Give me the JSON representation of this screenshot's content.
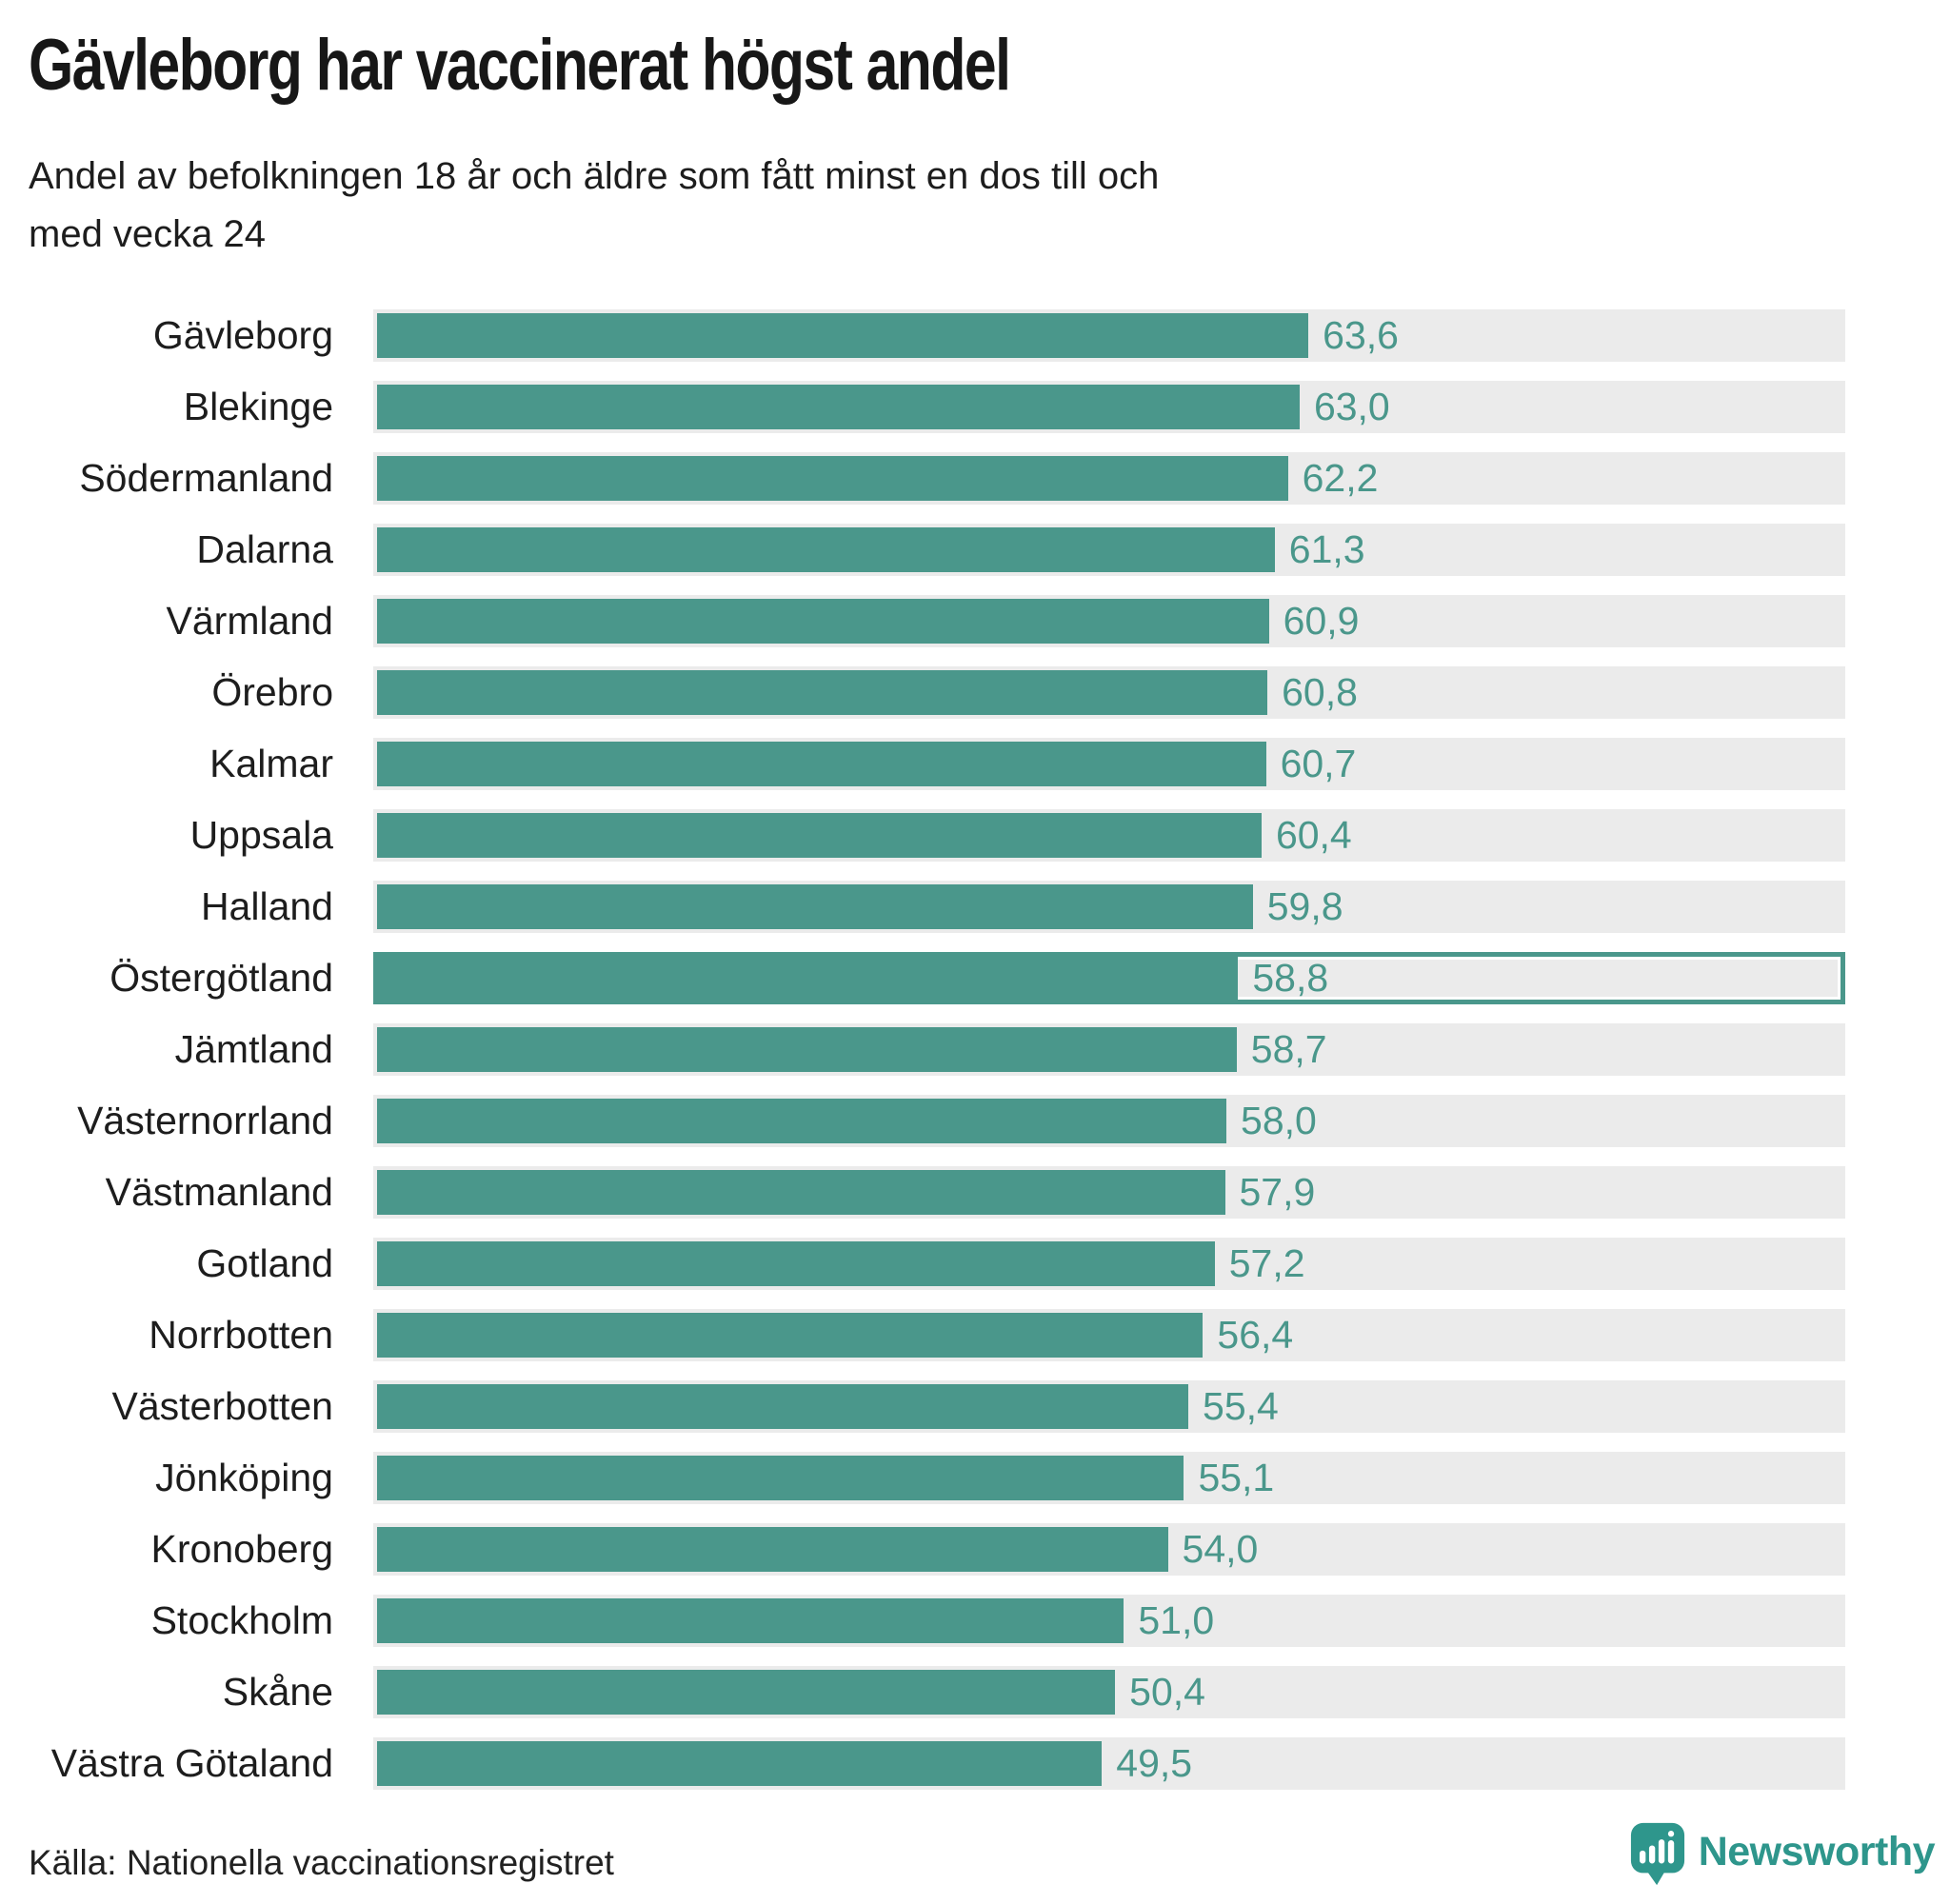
{
  "colors": {
    "bar": "#4A978B",
    "track": "#EBEBEB",
    "brand": "#2E968C",
    "title_text": "#171717",
    "body_text": "#1D1D1D"
  },
  "branding": {
    "name": "Newsworthy",
    "icon": "newsworthy-speech-bubble-bar-chart-icon"
  },
  "chart_data": {
    "type": "bar",
    "orientation": "horizontal",
    "title": "Gävleborg har vaccinerat högst andel",
    "subtitle_lines": [
      "Andel av befolkningen 18 år och äldre som fått minst en dos till och",
      "med vecka 24"
    ],
    "source": "Källa: Nationella vaccinationsregistret",
    "xlabel": "",
    "ylabel": "",
    "xlim": [
      0,
      100
    ],
    "grid": false,
    "legend": "none",
    "value_decimal_separator": ",",
    "highlighted_category": "Östergötland",
    "categories": [
      "Gävleborg",
      "Blekinge",
      "Södermanland",
      "Dalarna",
      "Värmland",
      "Örebro",
      "Kalmar",
      "Uppsala",
      "Halland",
      "Östergötland",
      "Jämtland",
      "Västernorrland",
      "Västmanland",
      "Gotland",
      "Norrbotten",
      "Västerbotten",
      "Jönköping",
      "Kronoberg",
      "Stockholm",
      "Skåne",
      "Västra Götaland"
    ],
    "values": [
      63.6,
      63.0,
      62.2,
      61.3,
      60.9,
      60.8,
      60.7,
      60.4,
      59.8,
      58.8,
      58.7,
      58.0,
      57.9,
      57.2,
      56.4,
      55.4,
      55.1,
      54.0,
      51.0,
      50.4,
      49.5
    ],
    "value_labels": [
      "63,6",
      "63,0",
      "62,2",
      "61,3",
      "60,9",
      "60,8",
      "60,7",
      "60,4",
      "59,8",
      "58,8",
      "58,7",
      "58,0",
      "57,9",
      "57,2",
      "56,4",
      "55,4",
      "55,1",
      "54,0",
      "51,0",
      "50,4",
      "49,5"
    ]
  }
}
